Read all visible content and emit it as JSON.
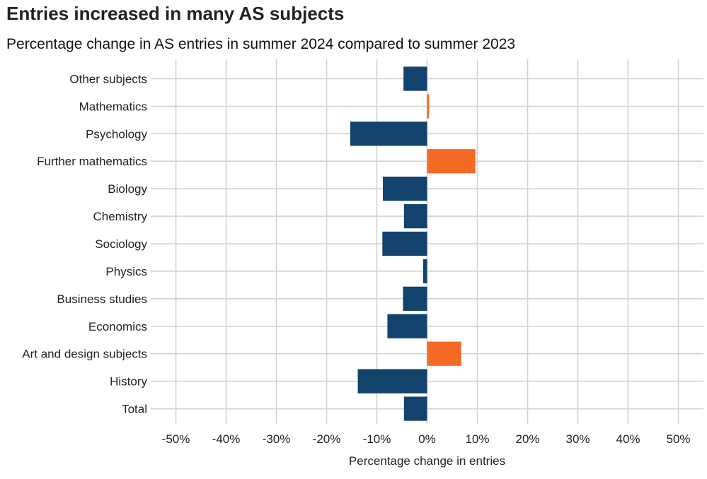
{
  "chart_data": {
    "type": "bar",
    "orientation": "horizontal",
    "title": "Entries increased in many AS subjects",
    "subtitle": "Percentage change in AS entries in summer 2024 compared to summer 2023",
    "xlabel": "Percentage change in entries",
    "ylabel": "",
    "categories": [
      "Other subjects",
      "Mathematics",
      "Psychology",
      "Further mathematics",
      "Biology",
      "Chemistry",
      "Sociology",
      "Physics",
      "Business studies",
      "Economics",
      "Art and design subjects",
      "History",
      "Total"
    ],
    "values": [
      -4.7,
      0.4,
      -15.3,
      9.6,
      -8.8,
      -4.6,
      -8.9,
      -0.8,
      -4.8,
      -7.9,
      6.8,
      -13.8,
      -4.6
    ],
    "xlim": [
      -55,
      55
    ],
    "xticks": [
      -50,
      -40,
      -30,
      -20,
      -10,
      0,
      10,
      20,
      30,
      40,
      50
    ],
    "xtick_labels": [
      "-50%",
      "-40%",
      "-30%",
      "-20%",
      "-10%",
      "0%",
      "10%",
      "20%",
      "30%",
      "40%",
      "50%"
    ],
    "grid": true,
    "legend": "none",
    "colors": {
      "increase": "#f46a25",
      "decrease": "#12436d",
      "grid": "#d2d2d2"
    }
  }
}
